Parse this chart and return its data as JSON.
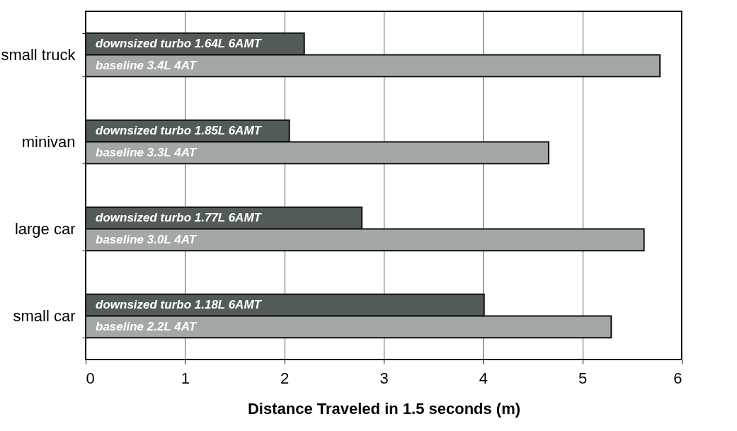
{
  "chart_data": {
    "type": "bar",
    "orientation": "horizontal",
    "xlabel": "Distance Traveled in 1.5 seconds (m)",
    "categories": [
      "small truck",
      "minivan",
      "large car",
      "small car"
    ],
    "series": [
      {
        "color": "#535b59",
        "values": [
          2.2,
          2.05,
          2.78,
          4.01
        ],
        "value_labels": [
          "downsized turbo  1.64L  6AMT",
          "downsized turbo  1.85L  6AMT",
          "downsized turbo  1.77L  6AMT",
          "downsized turbo  1.18L  6AMT"
        ]
      },
      {
        "color": "#a3a7a6",
        "values": [
          5.78,
          4.66,
          5.62,
          5.29
        ],
        "value_labels": [
          "baseline  3.4L  4AT",
          "baseline  3.3L  4AT",
          "baseline  3.0L  4AT",
          "baseline  2.2L  4AT"
        ]
      }
    ],
    "xlim": [
      0,
      6
    ],
    "xticks": [
      0,
      1,
      2,
      3,
      4,
      5,
      6
    ],
    "grid": "x",
    "legend": false
  }
}
